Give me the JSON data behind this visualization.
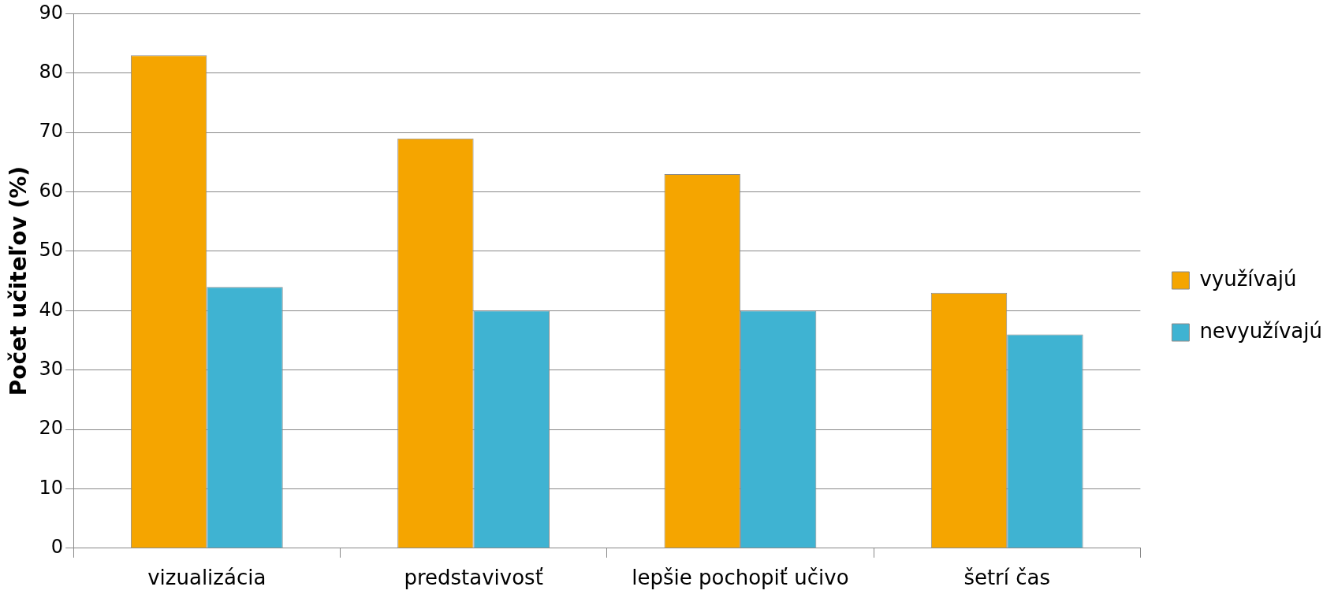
{
  "chart_data": {
    "type": "bar",
    "ylabel": "Počet učiteľov (%)",
    "categories": [
      "vizualizácia",
      "predstavivosť",
      "lepšie pochopiť učivo",
      "šetrí čas"
    ],
    "series": [
      {
        "name": "využívajú",
        "color": "#f5a500",
        "values": [
          83,
          69,
          63,
          43
        ]
      },
      {
        "name": "nevyužívajú",
        "color": "#3fb3d2",
        "values": [
          44,
          40,
          40,
          36
        ]
      }
    ],
    "ylim": [
      0,
      90
    ],
    "yticks": [
      0,
      10,
      20,
      30,
      40,
      50,
      60,
      70,
      80,
      90
    ],
    "grid": "y",
    "legend": "right"
  }
}
